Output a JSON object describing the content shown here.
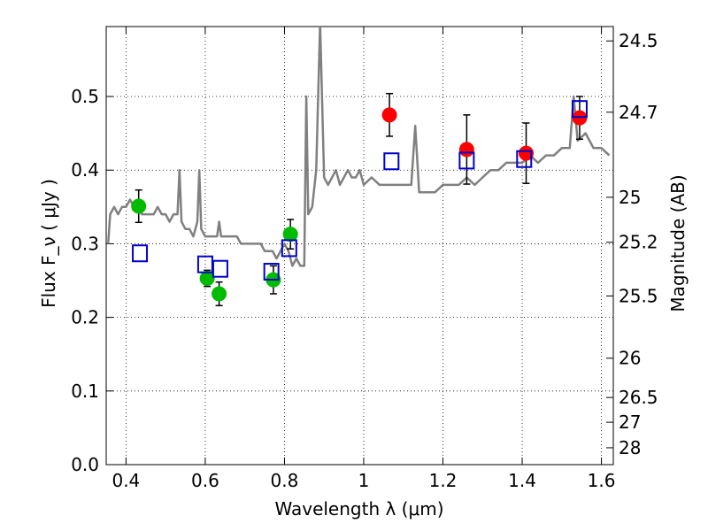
{
  "chart_data": {
    "type": "scatter",
    "xlabel": "Wavelength  λ (μm)",
    "ylabel": "Flux  F_ν  ( μJy )",
    "ylabel_right": "Magnitude (AB)",
    "xlim": [
      0.35,
      1.63
    ],
    "ylim": [
      0.0,
      0.595
    ],
    "grid": true,
    "legend": "none",
    "x_ticks": [
      0.4,
      0.6,
      0.8,
      1.0,
      1.2,
      1.4,
      1.6
    ],
    "x_tick_labels": [
      "0.4",
      "0.6",
      "0.8",
      "1",
      "1.2",
      "1.4",
      "1.6"
    ],
    "y_ticks": [
      0.0,
      0.1,
      0.2,
      0.3,
      0.4,
      0.5
    ],
    "y_tick_labels": [
      "0.0",
      "0.1",
      "0.2",
      "0.3",
      "0.4",
      "0.5"
    ],
    "mag_ticks": [
      24.5,
      24.7,
      25,
      25.2,
      25.5,
      26,
      26.5,
      27,
      28
    ],
    "mag_tick_labels": [
      "24.5",
      "24.7",
      "25",
      "25.2",
      "25.5",
      "26",
      "26.5",
      "27",
      "28"
    ],
    "series": [
      {
        "kind": "line",
        "color": "#808080",
        "x": [
          0.355,
          0.36,
          0.37,
          0.38,
          0.39,
          0.4,
          0.41,
          0.42,
          0.43,
          0.44,
          0.45,
          0.46,
          0.47,
          0.48,
          0.49,
          0.5,
          0.51,
          0.52,
          0.53,
          0.535,
          0.54,
          0.55,
          0.56,
          0.57,
          0.58,
          0.585,
          0.59,
          0.6,
          0.61,
          0.62,
          0.63,
          0.635,
          0.64,
          0.65,
          0.66,
          0.67,
          0.68,
          0.69,
          0.7,
          0.71,
          0.72,
          0.73,
          0.74,
          0.75,
          0.76,
          0.77,
          0.78,
          0.79,
          0.8,
          0.81,
          0.815,
          0.82,
          0.83,
          0.84,
          0.85,
          0.855,
          0.86,
          0.87,
          0.88,
          0.89,
          0.9,
          0.91,
          0.92,
          0.93,
          0.94,
          0.95,
          0.96,
          0.97,
          0.98,
          0.99,
          1.0,
          1.02,
          1.04,
          1.06,
          1.08,
          1.1,
          1.12,
          1.13,
          1.14,
          1.15,
          1.16,
          1.18,
          1.2,
          1.22,
          1.24,
          1.26,
          1.28,
          1.3,
          1.32,
          1.34,
          1.36,
          1.38,
          1.4,
          1.42,
          1.44,
          1.46,
          1.48,
          1.5,
          1.52,
          1.53,
          1.54,
          1.56,
          1.58,
          1.6,
          1.62
        ],
        "y": [
          0.3,
          0.34,
          0.35,
          0.34,
          0.35,
          0.35,
          0.36,
          0.35,
          0.35,
          0.34,
          0.34,
          0.34,
          0.34,
          0.35,
          0.34,
          0.34,
          0.33,
          0.34,
          0.34,
          0.4,
          0.33,
          0.32,
          0.32,
          0.31,
          0.33,
          0.4,
          0.32,
          0.31,
          0.31,
          0.31,
          0.31,
          0.33,
          0.31,
          0.31,
          0.31,
          0.31,
          0.31,
          0.3,
          0.3,
          0.3,
          0.3,
          0.3,
          0.3,
          0.29,
          0.29,
          0.29,
          0.28,
          0.29,
          0.3,
          0.29,
          0.28,
          0.27,
          0.28,
          0.27,
          0.27,
          0.5,
          0.34,
          0.35,
          0.4,
          0.6,
          0.39,
          0.38,
          0.39,
          0.4,
          0.38,
          0.39,
          0.4,
          0.39,
          0.39,
          0.4,
          0.38,
          0.39,
          0.38,
          0.38,
          0.38,
          0.38,
          0.38,
          0.46,
          0.37,
          0.37,
          0.37,
          0.37,
          0.38,
          0.38,
          0.38,
          0.39,
          0.38,
          0.39,
          0.4,
          0.4,
          0.41,
          0.41,
          0.41,
          0.42,
          0.41,
          0.42,
          0.42,
          0.43,
          0.43,
          0.5,
          0.44,
          0.45,
          0.43,
          0.43,
          0.42
        ]
      },
      {
        "kind": "points",
        "marker": "circle",
        "color": "#00bb00",
        "x": [
          0.432,
          0.605,
          0.635,
          0.772,
          0.815
        ],
        "y": [
          0.351,
          0.253,
          0.232,
          0.251,
          0.313
        ],
        "yerr": [
          0.022,
          0.011,
          0.016,
          0.019,
          0.02
        ]
      },
      {
        "kind": "points",
        "marker": "circle",
        "color": "#ff0000",
        "x": [
          1.065,
          1.26,
          1.41,
          1.545
        ],
        "y": [
          0.475,
          0.428,
          0.423,
          0.471
        ],
        "yerr": [
          0.029,
          0.047,
          0.041,
          0.029
        ]
      },
      {
        "kind": "points",
        "marker": "open-square",
        "color": "#0000cc",
        "x": [
          0.435,
          0.6,
          0.638,
          0.767,
          0.812,
          1.07,
          1.26,
          1.405,
          1.545
        ],
        "y": [
          0.287,
          0.272,
          0.266,
          0.262,
          0.294,
          0.412,
          0.413,
          0.415,
          0.483
        ]
      }
    ]
  }
}
